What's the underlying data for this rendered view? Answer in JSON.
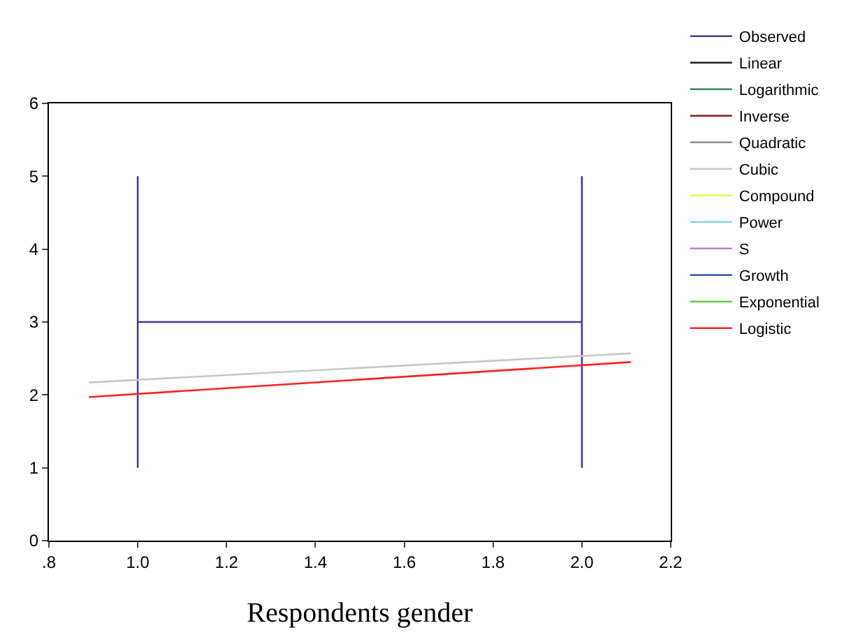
{
  "chart_data": {
    "type": "line",
    "xlabel": "Respondents gender",
    "xlim": [
      0.8,
      2.2
    ],
    "xticks": [
      {
        "value": 0.8,
        "label": ".8"
      },
      {
        "value": 1,
        "label": "1.0"
      },
      {
        "value": 1.2,
        "label": "1.2"
      },
      {
        "value": 1.4,
        "label": "1.4"
      },
      {
        "value": 1.6,
        "label": "1.6"
      },
      {
        "value": 1.8,
        "label": "1.8"
      },
      {
        "value": 2,
        "label": "2.0"
      },
      {
        "value": 2.2,
        "label": "2.2"
      }
    ],
    "ylim": [
      0,
      6
    ],
    "yticks": [
      0,
      1,
      2,
      3,
      4,
      5,
      6
    ],
    "grid": false,
    "legend": "right",
    "series": [
      {
        "name": "Observed",
        "color": "#40408c",
        "x": [
          1,
          1,
          1,
          2,
          2,
          2
        ],
        "values": [
          1,
          5,
          3,
          3,
          1,
          5
        ]
      },
      {
        "name": "Linear",
        "color": "#202020"
      },
      {
        "name": "Logarithmic",
        "color": "#2e8b57"
      },
      {
        "name": "Inverse",
        "color": "#8b1a1a"
      },
      {
        "name": "Quadratic",
        "color": "#909090"
      },
      {
        "name": "Cubic",
        "color": "#c8c8c8",
        "x": [
          0.89,
          2.11
        ],
        "values": [
          2.17,
          2.57
        ]
      },
      {
        "name": "Compound",
        "color": "#f0f060"
      },
      {
        "name": "Power",
        "color": "#80d8e0"
      },
      {
        "name": "S",
        "color": "#c080c0"
      },
      {
        "name": "Growth",
        "color": "#3050c0"
      },
      {
        "name": "Exponential",
        "color": "#60d040"
      },
      {
        "name": "Logistic",
        "color": "#ff2020",
        "x": [
          0.89,
          2.11
        ],
        "values": [
          1.97,
          2.45
        ]
      }
    ]
  }
}
